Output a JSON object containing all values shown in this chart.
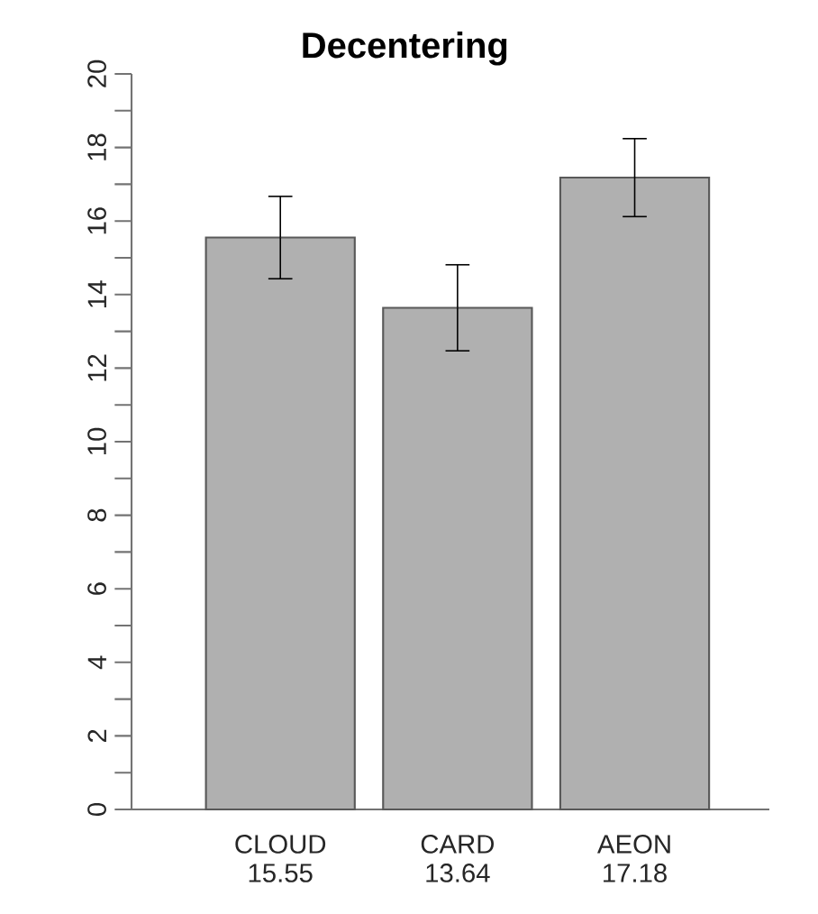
{
  "chart_data": {
    "type": "bar",
    "title": "Decentering",
    "categories": [
      "CLOUD",
      "CARD",
      "AEON"
    ],
    "values": [
      15.55,
      13.64,
      17.18
    ],
    "value_labels": [
      "15.55",
      "13.64",
      "17.18"
    ],
    "errors": [
      1.12,
      1.17,
      1.06
    ],
    "color": "#b0b0b0",
    "ylim": [
      0,
      20
    ],
    "yticks": [
      0,
      {
        "value": 1,
        "label": null
      },
      2,
      {
        "value": 3,
        "label": null
      },
      4,
      {
        "value": 5,
        "label": null
      },
      6,
      {
        "value": 7,
        "label": null
      },
      8,
      {
        "value": 9,
        "label": null
      },
      10,
      {
        "value": 11,
        "label": null
      },
      12,
      {
        "value": 13,
        "label": null
      },
      14,
      {
        "value": 15,
        "label": null
      },
      16,
      {
        "value": 17,
        "label": null
      },
      18,
      {
        "value": 19,
        "label": null
      },
      20
    ],
    "grid": false
  }
}
